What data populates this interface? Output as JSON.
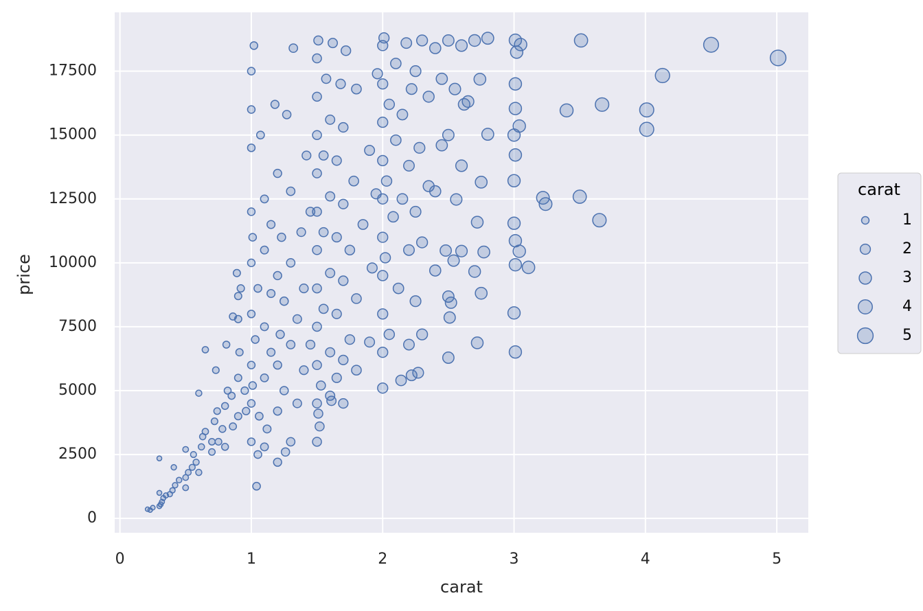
{
  "chart_data": {
    "type": "scatter",
    "xlabel": "carat",
    "ylabel": "price",
    "xlim": [
      -0.04,
      5.24
    ],
    "ylim": [
      -560,
      19800
    ],
    "xticks": [
      0,
      1,
      2,
      3,
      4,
      5
    ],
    "yticks": [
      0,
      2500,
      5000,
      7500,
      10000,
      12500,
      15000,
      17500
    ],
    "grid": true,
    "legend": "right",
    "size_legend": {
      "title": "carat",
      "values": [
        1,
        2,
        3,
        4,
        5
      ]
    },
    "series": [
      {
        "color": "#4c72b0",
        "x": [
          0.23,
          0.21,
          0.25,
          0.3,
          0.31,
          0.32,
          0.33,
          0.35,
          0.3,
          0.4,
          0.42,
          0.38,
          0.45,
          0.5,
          0.5,
          0.52,
          0.55,
          0.56,
          0.58,
          0.6,
          0.62,
          0.63,
          0.65,
          0.7,
          0.7,
          0.72,
          0.74,
          0.75,
          0.78,
          0.8,
          0.8,
          0.82,
          0.85,
          0.86,
          0.9,
          0.9,
          0.91,
          0.9,
          0.92,
          0.95,
          0.96,
          0.3,
          0.41,
          0.5,
          0.6,
          0.65,
          0.73,
          0.81,
          0.86,
          0.89,
          0.9,
          1.0,
          1.0,
          1.0,
          1.0,
          1.0,
          1.0,
          1.0,
          1.0,
          1.0,
          1.02,
          1.01,
          1.01,
          1.03,
          1.05,
          1.06,
          1.07,
          1.1,
          1.1,
          1.1,
          1.1,
          1.12,
          1.15,
          1.15,
          1.15,
          1.18,
          1.2,
          1.2,
          1.2,
          1.2,
          1.22,
          1.23,
          1.25,
          1.25,
          1.27,
          1.3,
          1.3,
          1.3,
          1.3,
          1.32,
          1.35,
          1.35,
          1.38,
          1.4,
          1.4,
          1.42,
          1.45,
          1.45,
          1.05,
          1.1,
          1.26,
          1.04,
          1.2,
          1.5,
          1.5,
          1.5,
          1.5,
          1.5,
          1.5,
          1.5,
          1.5,
          1.5,
          1.5,
          1.5,
          1.51,
          1.52,
          1.53,
          1.55,
          1.55,
          1.55,
          1.57,
          1.6,
          1.6,
          1.6,
          1.6,
          1.6,
          1.62,
          1.65,
          1.65,
          1.65,
          1.65,
          1.68,
          1.7,
          1.7,
          1.7,
          1.7,
          1.7,
          1.72,
          1.75,
          1.75,
          1.78,
          1.8,
          1.8,
          1.8,
          1.85,
          1.9,
          1.9,
          1.92,
          1.95,
          1.96,
          1.51,
          1.61,
          2.0,
          2.0,
          2.0,
          2.0,
          2.0,
          2.0,
          2.0,
          2.0,
          2.0,
          2.0,
          2.01,
          2.02,
          2.03,
          2.05,
          2.05,
          2.08,
          2.1,
          2.1,
          2.12,
          2.15,
          2.15,
          2.18,
          2.2,
          2.2,
          2.2,
          2.22,
          2.25,
          2.25,
          2.25,
          2.28,
          2.3,
          2.3,
          2.3,
          2.35,
          2.35,
          2.4,
          2.4,
          2.4,
          2.45,
          2.45,
          2.5,
          2.5,
          2.55,
          2.6,
          2.6,
          2.62,
          2.7,
          2.22,
          2.14,
          2.27,
          5.01,
          4.5,
          4.13,
          4.01,
          4.01,
          3.51,
          3.67,
          3.4,
          3.65,
          3.5,
          3.22,
          3.24,
          3.11,
          3.04,
          3.01,
          3.01,
          3.0,
          3.01,
          3.0,
          3.0,
          3.01,
          3.0,
          3.01,
          3.01,
          3.02,
          3.01,
          3.05,
          3.04,
          2.8,
          2.72,
          2.75,
          2.7,
          2.77,
          2.72,
          2.75,
          2.8,
          2.74,
          2.5,
          2.51,
          2.52,
          2.5,
          2.54,
          2.48,
          2.56,
          2.6,
          2.65
        ],
        "values": [
          326,
          360,
          420,
          480,
          550,
          650,
          800,
          900,
          1000,
          1100,
          1300,
          950,
          1500,
          1600,
          1200,
          1800,
          2000,
          2500,
          2200,
          1800,
          2800,
          3200,
          3400,
          2600,
          3000,
          3800,
          4200,
          3000,
          3500,
          4400,
          2800,
          5000,
          4800,
          3600,
          4000,
          5500,
          6500,
          7800,
          9000,
          5000,
          4200,
          2350,
          2000,
          2700,
          4900,
          6600,
          5800,
          6800,
          7900,
          9600,
          8700,
          3000,
          4500,
          6000,
          8000,
          10000,
          12000,
          14500,
          16000,
          17500,
          18500,
          11000,
          5200,
          7000,
          9000,
          4000,
          15000,
          5500,
          7500,
          10500,
          12500,
          3500,
          6500,
          8800,
          11500,
          16200,
          4200,
          6000,
          9500,
          13500,
          7200,
          11000,
          5000,
          8500,
          15800,
          3000,
          6800,
          10000,
          12800,
          18400,
          4500,
          7800,
          11200,
          5800,
          9000,
          14200,
          6800,
          12000,
          2500,
          2800,
          2600,
          1260,
          2200,
          3000,
          4500,
          6000,
          7500,
          9000,
          10500,
          12000,
          13500,
          15000,
          16500,
          18000,
          18700,
          3600,
          5200,
          8200,
          11200,
          14200,
          17200,
          4800,
          6500,
          9600,
          12600,
          15600,
          18600,
          5500,
          8000,
          11000,
          14000,
          17000,
          4500,
          6200,
          9300,
          12300,
          15300,
          18300,
          7000,
          10500,
          13200,
          5800,
          8600,
          16800,
          11500,
          6900,
          14400,
          9800,
          12700,
          17400,
          4100,
          4600,
          5100,
          6500,
          8000,
          9500,
          11000,
          12500,
          14000,
          15500,
          17000,
          18500,
          18800,
          10200,
          13200,
          16200,
          7200,
          11800,
          14800,
          17800,
          9000,
          12500,
          15800,
          18600,
          6800,
          10500,
          13800,
          16800,
          8500,
          12000,
          17500,
          14500,
          7200,
          10800,
          18700,
          13000,
          16500,
          9700,
          12800,
          18400,
          14600,
          17200,
          15000,
          18700,
          16800,
          13800,
          18500,
          16200,
          18700,
          5600,
          5400,
          5700,
          18018,
          18531,
          17329,
          15984,
          15223,
          18701,
          16193,
          15964,
          11668,
          12587,
          12545,
          12300,
          9823,
          10453,
          10863,
          9925,
          8040,
          6512,
          11548,
          13213,
          14220,
          14998,
          16037,
          17000,
          18242,
          18710,
          18540,
          15352,
          18788,
          6870,
          8810,
          9660,
          10424,
          11590,
          13156,
          15030,
          17183,
          6289,
          7860,
          8440,
          8680,
          10087,
          10480,
          12480,
          10460,
          16310
        ]
      }
    ]
  }
}
